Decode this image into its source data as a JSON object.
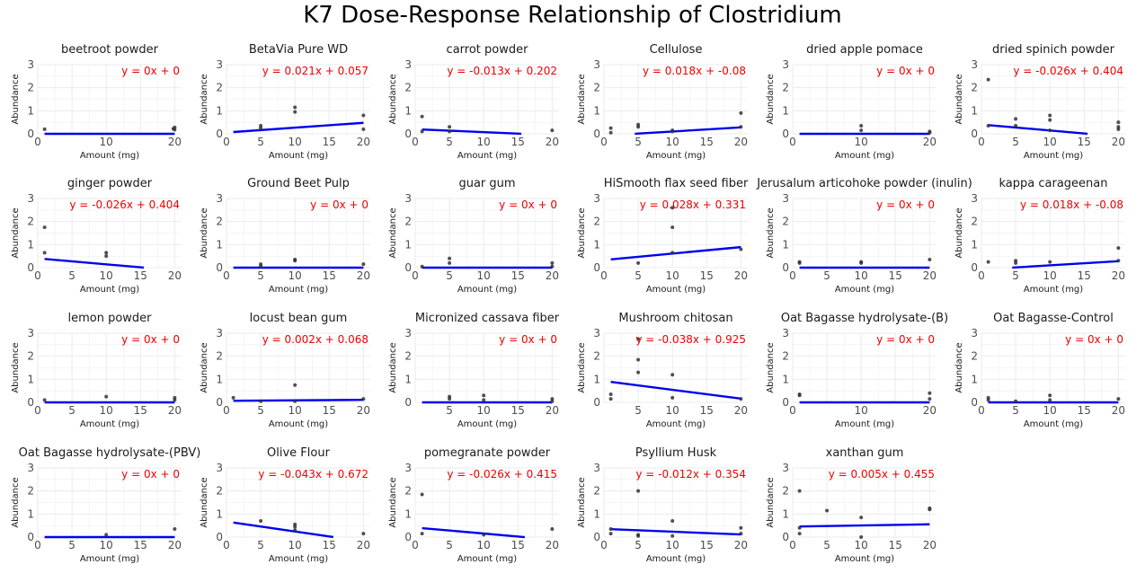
{
  "title": "K7 Dose-Response Relationship of Clostridium",
  "style": {
    "line_color": "#0000ee",
    "equation_color": "#ee0000",
    "point_color": "#333333",
    "grid_color": "#ebebeb"
  },
  "chart_data": [
    {
      "type": "scatter",
      "title": "beetroot powder",
      "xlabel": "Amount (mg)",
      "ylabel": "Abundance",
      "equation": "y = 0x + 0",
      "slope": 0,
      "intercept": 0,
      "fit_range": [
        1,
        20
      ],
      "xlim": [
        0,
        21
      ],
      "ylim": [
        0,
        3
      ],
      "xticks": [
        0,
        10,
        20
      ],
      "yticks": [
        0,
        1,
        2,
        3
      ],
      "points": [
        [
          1,
          0.2
        ],
        [
          19.8,
          0.22
        ],
        [
          20,
          0.18
        ],
        [
          20,
          0.28
        ]
      ]
    },
    {
      "type": "scatter",
      "title": "BetaVia Pure WD",
      "xlabel": "Amount (mg)",
      "ylabel": "Abundance",
      "equation": "y = 0.021x + 0.057",
      "slope": 0.021,
      "intercept": 0.057,
      "fit_range": [
        1,
        20
      ],
      "xlim": [
        0,
        21
      ],
      "ylim": [
        0,
        3
      ],
      "xticks": [
        0,
        5,
        10,
        15,
        20
      ],
      "yticks": [
        0,
        1,
        2,
        3
      ],
      "points": [
        [
          5,
          0.25
        ],
        [
          5,
          0.35
        ],
        [
          10,
          0.95
        ],
        [
          10,
          1.15
        ],
        [
          20,
          0.8
        ],
        [
          20,
          0.2
        ]
      ]
    },
    {
      "type": "scatter",
      "title": "carrot powder",
      "xlabel": "Amount (mg)",
      "ylabel": "Abundance",
      "equation": "y = -0.013x + 0.202",
      "slope": -0.013,
      "intercept": 0.202,
      "fit_range": [
        1,
        15.5
      ],
      "xlim": [
        0,
        21
      ],
      "ylim": [
        0,
        3
      ],
      "xticks": [
        0,
        5,
        10,
        15,
        20
      ],
      "yticks": [
        0,
        1,
        2,
        3
      ],
      "points": [
        [
          1,
          0.75
        ],
        [
          1,
          0.1
        ],
        [
          5,
          0.3
        ],
        [
          5,
          0.1
        ],
        [
          20,
          0.15
        ]
      ]
    },
    {
      "type": "scatter",
      "title": "Cellulose",
      "xlabel": "Amount (mg)",
      "ylabel": "Abundance",
      "equation": "y = 0.018x + -0.08",
      "slope": 0.018,
      "intercept": -0.08,
      "fit_range": [
        4.5,
        20
      ],
      "xlim": [
        0,
        21
      ],
      "ylim": [
        0,
        3
      ],
      "xticks": [
        0,
        5,
        10,
        15,
        20
      ],
      "yticks": [
        0,
        1,
        2,
        3
      ],
      "points": [
        [
          1,
          0.25
        ],
        [
          1,
          0.05
        ],
        [
          5,
          0.4
        ],
        [
          5,
          0.3
        ],
        [
          10,
          0.1
        ],
        [
          10,
          0.15
        ],
        [
          20,
          0.9
        ],
        [
          20,
          0.3
        ]
      ]
    },
    {
      "type": "scatter",
      "title": "dried apple pomace",
      "xlabel": "Amount (mg)",
      "ylabel": "Abundance",
      "equation": "y = 0x + 0",
      "slope": 0,
      "intercept": 0,
      "fit_range": [
        1,
        20
      ],
      "xlim": [
        0,
        21
      ],
      "ylim": [
        0,
        3
      ],
      "xticks": [
        0,
        10,
        20
      ],
      "yticks": [
        0,
        1,
        2,
        3
      ],
      "points": [
        [
          10,
          0.35
        ],
        [
          10,
          0.15
        ],
        [
          20,
          0.1
        ],
        [
          20,
          0.05
        ]
      ]
    },
    {
      "type": "scatter",
      "title": "dried spinich powder",
      "xlabel": "Amount (mg)",
      "ylabel": "Abundance",
      "equation": "y = -0.026x + 0.404",
      "slope": -0.026,
      "intercept": 0.404,
      "fit_range": [
        1,
        15.5
      ],
      "xlim": [
        0,
        21
      ],
      "ylim": [
        0,
        3
      ],
      "xticks": [
        0,
        5,
        10,
        15,
        20
      ],
      "yticks": [
        0,
        1,
        2,
        3
      ],
      "points": [
        [
          1,
          2.35
        ],
        [
          1,
          0.35
        ],
        [
          5,
          0.65
        ],
        [
          5,
          0.35
        ],
        [
          10,
          0.8
        ],
        [
          10,
          0.6
        ],
        [
          10,
          0.15
        ],
        [
          20,
          0.5
        ],
        [
          20,
          0.3
        ],
        [
          20,
          0.2
        ]
      ]
    },
    {
      "type": "scatter",
      "title": "ginger powder",
      "xlabel": "Amount (mg)",
      "ylabel": "Abundance",
      "equation": "y = -0.026x + 0.404",
      "slope": -0.026,
      "intercept": 0.404,
      "fit_range": [
        1,
        15.5
      ],
      "xlim": [
        0,
        21
      ],
      "ylim": [
        0,
        3
      ],
      "xticks": [
        0,
        5,
        10,
        15,
        20
      ],
      "yticks": [
        0,
        1,
        2,
        3
      ],
      "points": [
        [
          1,
          1.75
        ],
        [
          1,
          0.65
        ],
        [
          10,
          0.65
        ],
        [
          10,
          0.5
        ]
      ]
    },
    {
      "type": "scatter",
      "title": "Ground Beet Pulp",
      "xlabel": "Amount (mg)",
      "ylabel": "Abundance",
      "equation": "y = 0x + 0",
      "slope": 0,
      "intercept": 0,
      "fit_range": [
        1,
        20
      ],
      "xlim": [
        0,
        21
      ],
      "ylim": [
        0,
        3
      ],
      "xticks": [
        0,
        5,
        10,
        15,
        20
      ],
      "yticks": [
        0,
        1,
        2,
        3
      ],
      "points": [
        [
          5,
          0.15
        ],
        [
          5,
          0.05
        ],
        [
          10,
          0.35
        ],
        [
          10,
          0.3
        ],
        [
          20,
          0.15
        ]
      ]
    },
    {
      "type": "scatter",
      "title": "guar gum",
      "xlabel": "Amount (mg)",
      "ylabel": "Abundance",
      "equation": "y = 0x + 0",
      "slope": 0,
      "intercept": 0,
      "fit_range": [
        1,
        20
      ],
      "xlim": [
        0,
        21
      ],
      "ylim": [
        0,
        3
      ],
      "xticks": [
        0,
        5,
        10,
        15,
        20
      ],
      "yticks": [
        0,
        1,
        2,
        3
      ],
      "points": [
        [
          1,
          0.05
        ],
        [
          5,
          0.4
        ],
        [
          5,
          0.2
        ],
        [
          20,
          0.2
        ],
        [
          20,
          0.05
        ]
      ]
    },
    {
      "type": "scatter",
      "title": "HiSmooth flax seed fiber",
      "xlabel": "Amount (mg)",
      "ylabel": "Abundance",
      "equation": "y = 0.028x + 0.331",
      "slope": 0.028,
      "intercept": 0.331,
      "fit_range": [
        1,
        20
      ],
      "xlim": [
        0,
        21
      ],
      "ylim": [
        0,
        3
      ],
      "xticks": [
        0,
        5,
        10,
        15,
        20
      ],
      "yticks": [
        0,
        1,
        2,
        3
      ],
      "points": [
        [
          5,
          0.2
        ],
        [
          10,
          2.6
        ],
        [
          10,
          1.75
        ],
        [
          10,
          0.65
        ],
        [
          20,
          0.8
        ]
      ]
    },
    {
      "type": "scatter",
      "title": "Jerusalum articohoke powder (inulin)",
      "xlabel": "Amount (mg)",
      "ylabel": "Abundance",
      "equation": "y = 0x + 0",
      "slope": 0,
      "intercept": 0,
      "fit_range": [
        1,
        20
      ],
      "xlim": [
        0,
        21
      ],
      "ylim": [
        0,
        3
      ],
      "xticks": [
        0,
        5,
        10,
        15,
        20
      ],
      "yticks": [
        0,
        1,
        2,
        3
      ],
      "points": [
        [
          1,
          0.25
        ],
        [
          1,
          0.2
        ],
        [
          10,
          0.25
        ],
        [
          10,
          0.2
        ],
        [
          20,
          0.35
        ]
      ]
    },
    {
      "type": "scatter",
      "title": "kappa carageenan",
      "xlabel": "Amount (mg)",
      "ylabel": "Abundance",
      "equation": "y = 0.018x + -0.08",
      "slope": 0.018,
      "intercept": -0.08,
      "fit_range": [
        4.5,
        20
      ],
      "xlim": [
        0,
        21
      ],
      "ylim": [
        0,
        3
      ],
      "xticks": [
        0,
        5,
        10,
        15,
        20
      ],
      "yticks": [
        0,
        1,
        2,
        3
      ],
      "points": [
        [
          1,
          0.25
        ],
        [
          5,
          0.3
        ],
        [
          5,
          0.2
        ],
        [
          10,
          0.25
        ],
        [
          20,
          0.85
        ],
        [
          20,
          0.3
        ]
      ]
    },
    {
      "type": "scatter",
      "title": "lemon powder",
      "xlabel": "Amount (mg)",
      "ylabel": "Abundance",
      "equation": "y = 0x + 0",
      "slope": 0,
      "intercept": 0,
      "fit_range": [
        1,
        20
      ],
      "xlim": [
        0,
        21
      ],
      "ylim": [
        0,
        3
      ],
      "xticks": [
        0,
        5,
        10,
        15,
        20
      ],
      "yticks": [
        0,
        1,
        2,
        3
      ],
      "points": [
        [
          1,
          0.1
        ],
        [
          10,
          0.25
        ],
        [
          20,
          0.2
        ],
        [
          20,
          0.1
        ]
      ]
    },
    {
      "type": "scatter",
      "title": "locust bean gum",
      "xlabel": "Amount (mg)",
      "ylabel": "Abundance",
      "equation": "y = 0.002x + 0.068",
      "slope": 0.002,
      "intercept": 0.068,
      "fit_range": [
        1,
        20
      ],
      "xlim": [
        0,
        21
      ],
      "ylim": [
        0,
        3
      ],
      "xticks": [
        0,
        5,
        10,
        15,
        20
      ],
      "yticks": [
        0,
        1,
        2,
        3
      ],
      "points": [
        [
          1,
          0.2
        ],
        [
          5,
          0.05
        ],
        [
          10,
          0.75
        ],
        [
          10,
          0.05
        ],
        [
          20,
          0.15
        ]
      ]
    },
    {
      "type": "scatter",
      "title": "Micronized cassava fiber",
      "xlabel": "Amount (mg)",
      "ylabel": "Abundance",
      "equation": "y = 0x + 0",
      "slope": 0,
      "intercept": 0,
      "fit_range": [
        1,
        20
      ],
      "xlim": [
        0,
        21
      ],
      "ylim": [
        0,
        3
      ],
      "xticks": [
        5,
        10,
        15,
        20
      ],
      "yticks": [
        0,
        1,
        2,
        3
      ],
      "points": [
        [
          5,
          0.25
        ],
        [
          5,
          0.15
        ],
        [
          10,
          0.3
        ],
        [
          10,
          0.1
        ],
        [
          20,
          0.15
        ],
        [
          20,
          0.05
        ]
      ]
    },
    {
      "type": "scatter",
      "title": "Mushroom chitosan",
      "xlabel": "Amount (mg)",
      "ylabel": "Abundance",
      "equation": "y = -0.038x + 0.925",
      "slope": -0.038,
      "intercept": 0.925,
      "fit_range": [
        1,
        20
      ],
      "xlim": [
        0,
        21
      ],
      "ylim": [
        0,
        3
      ],
      "xticks": [
        5,
        10,
        15,
        20
      ],
      "yticks": [
        0,
        1,
        2,
        3
      ],
      "points": [
        [
          1,
          0.35
        ],
        [
          1,
          0.15
        ],
        [
          5,
          2.75
        ],
        [
          5,
          1.85
        ],
        [
          5,
          1.3
        ],
        [
          10,
          1.2
        ],
        [
          10,
          0.2
        ],
        [
          20,
          0.15
        ]
      ]
    },
    {
      "type": "scatter",
      "title": "Oat Bagasse hydrolysate-(B)",
      "xlabel": "Amount (mg)",
      "ylabel": "Abundance",
      "equation": "y = 0x + 0",
      "slope": 0,
      "intercept": 0,
      "fit_range": [
        1,
        20
      ],
      "xlim": [
        0,
        21
      ],
      "ylim": [
        0,
        3
      ],
      "xticks": [
        0,
        10,
        20
      ],
      "yticks": [
        0,
        1,
        2,
        3
      ],
      "points": [
        [
          1,
          0.35
        ],
        [
          1,
          0.3
        ],
        [
          20,
          0.4
        ],
        [
          20,
          0.15
        ]
      ]
    },
    {
      "type": "scatter",
      "title": "Oat Bagasse-Control",
      "xlabel": "Amount (mg)",
      "ylabel": "Abundance",
      "equation": "y = 0x + 0",
      "slope": 0,
      "intercept": 0,
      "fit_range": [
        1,
        20
      ],
      "xlim": [
        0,
        21
      ],
      "ylim": [
        0,
        3
      ],
      "xticks": [
        0,
        5,
        10,
        15,
        20
      ],
      "yticks": [
        0,
        1,
        2,
        3
      ],
      "points": [
        [
          1,
          0.2
        ],
        [
          1,
          0.1
        ],
        [
          5,
          0.05
        ],
        [
          10,
          0.3
        ],
        [
          10,
          0.1
        ],
        [
          20,
          0.15
        ]
      ]
    },
    {
      "type": "scatter",
      "title": "Oat Bagasse hydrolysate-(PBV)",
      "xlabel": "Amount (mg)",
      "ylabel": "Abundance",
      "equation": "y = 0x + 0",
      "slope": 0,
      "intercept": 0,
      "fit_range": [
        1,
        20
      ],
      "xlim": [
        0,
        21
      ],
      "ylim": [
        0,
        3
      ],
      "xticks": [
        0,
        5,
        10,
        15,
        20
      ],
      "yticks": [
        0,
        1,
        2,
        3
      ],
      "points": [
        [
          10,
          0.1
        ],
        [
          20,
          0.35
        ]
      ]
    },
    {
      "type": "scatter",
      "title": "Olive Flour",
      "xlabel": "Amount (mg)",
      "ylabel": "Abundance",
      "equation": "y = -0.043x + 0.672",
      "slope": -0.043,
      "intercept": 0.672,
      "fit_range": [
        1,
        15.6
      ],
      "xlim": [
        0,
        21
      ],
      "ylim": [
        0,
        3
      ],
      "xticks": [
        0,
        5,
        10,
        15,
        20
      ],
      "yticks": [
        0,
        1,
        2,
        3
      ],
      "points": [
        [
          5,
          0.7
        ],
        [
          10,
          0.55
        ],
        [
          10,
          0.45
        ],
        [
          10,
          0.3
        ],
        [
          20,
          0.15
        ]
      ]
    },
    {
      "type": "scatter",
      "title": "pomegranate powder",
      "xlabel": "Amount (mg)",
      "ylabel": "Abundance",
      "equation": "y = -0.026x + 0.415",
      "slope": -0.026,
      "intercept": 0.415,
      "fit_range": [
        1,
        16
      ],
      "xlim": [
        0,
        21
      ],
      "ylim": [
        0,
        3
      ],
      "xticks": [
        0,
        5,
        10,
        15,
        20
      ],
      "yticks": [
        0,
        1,
        2,
        3
      ],
      "points": [
        [
          1,
          1.85
        ],
        [
          1,
          0.15
        ],
        [
          10,
          0.1
        ],
        [
          20,
          0.35
        ]
      ]
    },
    {
      "type": "scatter",
      "title": "Psyllium Husk",
      "xlabel": "Amount (mg)",
      "ylabel": "Abundance",
      "equation": "y = -0.012x + 0.354",
      "slope": -0.012,
      "intercept": 0.354,
      "fit_range": [
        1,
        20
      ],
      "xlim": [
        0,
        21
      ],
      "ylim": [
        0,
        3
      ],
      "xticks": [
        0,
        5,
        10,
        15,
        20
      ],
      "yticks": [
        0,
        1,
        2,
        3
      ],
      "points": [
        [
          1,
          0.35
        ],
        [
          1,
          0.15
        ],
        [
          5,
          2.0
        ],
        [
          5,
          0.1
        ],
        [
          5,
          0.05
        ],
        [
          10,
          0.7
        ],
        [
          10,
          0.05
        ],
        [
          20,
          0.4
        ],
        [
          20,
          0.15
        ]
      ]
    },
    {
      "type": "scatter",
      "title": "xanthan gum",
      "xlabel": "Amount (mg)",
      "ylabel": "Abundance",
      "equation": "y = 0.005x + 0.455",
      "slope": 0.005,
      "intercept": 0.455,
      "fit_range": [
        1,
        20
      ],
      "xlim": [
        0,
        21
      ],
      "ylim": [
        0,
        3
      ],
      "xticks": [
        0,
        5,
        10,
        15,
        20
      ],
      "yticks": [
        0,
        1,
        2,
        3
      ],
      "points": [
        [
          1,
          2.0
        ],
        [
          1,
          0.4
        ],
        [
          1,
          0.15
        ],
        [
          5,
          1.15
        ],
        [
          10,
          0.85
        ],
        [
          10,
          0.0
        ],
        [
          20,
          1.25
        ],
        [
          20,
          1.2
        ]
      ]
    }
  ]
}
